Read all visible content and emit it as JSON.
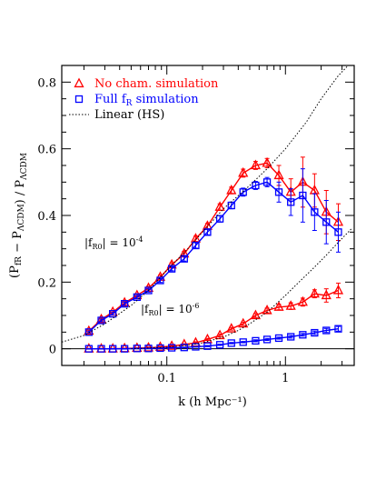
{
  "chart_data": {
    "type": "line",
    "xlabel": "k (h Mpc⁻¹)",
    "ylabel": "(P_fR − P_ΛCDM) / P_ΛCDM",
    "xscale": "log",
    "xlim": [
      0.013,
      3.8
    ],
    "ylim": [
      -0.05,
      0.85
    ],
    "x_ticks": [
      {
        "value": 0.1,
        "label": "0.1"
      },
      {
        "value": 1,
        "label": "1"
      }
    ],
    "y_ticks": [
      {
        "value": 0,
        "label": "0"
      },
      {
        "value": 0.2,
        "label": "0.2"
      },
      {
        "value": 0.4,
        "label": "0.4"
      },
      {
        "value": 0.6,
        "label": "0.6"
      },
      {
        "value": 0.8,
        "label": "0.8"
      }
    ],
    "grid": false,
    "legend": {
      "placement": "top-left",
      "entries": [
        {
          "label": "No cham. simulation",
          "color": "#ff0000",
          "marker": "triangle"
        },
        {
          "label": "Full f",
          "label_sub": "R",
          "label_rest": " simulation",
          "color": "#0000ff",
          "marker": "square"
        },
        {
          "label": "Linear (HS)",
          "color": "#000000",
          "marker": "dotted-line"
        }
      ]
    },
    "annotations": [
      {
        "text": "|f",
        "sub": "R0",
        "rest": "| = 10",
        "sup": "-4"
      },
      {
        "text": "|f",
        "sub": "R0",
        "rest": "| = 10",
        "sup": "-6"
      }
    ],
    "series": [
      {
        "name": "No cham. simulation",
        "group": "fR0=1e-4",
        "color": "#ff0000",
        "marker": "triangle",
        "x": [
          0.022,
          0.028,
          0.035,
          0.044,
          0.056,
          0.07,
          0.088,
          0.11,
          0.14,
          0.175,
          0.22,
          0.28,
          0.35,
          0.44,
          0.56,
          0.7,
          0.88,
          1.11,
          1.4,
          1.76,
          2.21,
          2.79
        ],
        "y": [
          0.053,
          0.088,
          0.11,
          0.138,
          0.16,
          0.182,
          0.215,
          0.252,
          0.285,
          0.33,
          0.368,
          0.425,
          0.475,
          0.527,
          0.55,
          0.557,
          0.52,
          0.47,
          0.5,
          0.475,
          0.41,
          0.38
        ],
        "err": [
          0.003,
          0.004,
          0.004,
          0.005,
          0.005,
          0.005,
          0.006,
          0.006,
          0.007,
          0.008,
          0.008,
          0.01,
          0.01,
          0.012,
          0.012,
          0.014,
          0.03,
          0.04,
          0.075,
          0.05,
          0.065,
          0.055
        ]
      },
      {
        "name": "Full fR simulation",
        "group": "fR0=1e-4",
        "color": "#0000ff",
        "marker": "square",
        "x": [
          0.022,
          0.028,
          0.035,
          0.044,
          0.056,
          0.07,
          0.088,
          0.11,
          0.14,
          0.175,
          0.22,
          0.28,
          0.35,
          0.44,
          0.56,
          0.7,
          0.88,
          1.11,
          1.4,
          1.76,
          2.21,
          2.79
        ],
        "y": [
          0.05,
          0.085,
          0.105,
          0.135,
          0.155,
          0.175,
          0.205,
          0.24,
          0.27,
          0.31,
          0.35,
          0.39,
          0.43,
          0.47,
          0.49,
          0.5,
          0.47,
          0.44,
          0.46,
          0.41,
          0.38,
          0.35
        ],
        "err": [
          0.003,
          0.004,
          0.004,
          0.005,
          0.005,
          0.005,
          0.006,
          0.006,
          0.007,
          0.008,
          0.008,
          0.01,
          0.01,
          0.012,
          0.012,
          0.014,
          0.03,
          0.04,
          0.08,
          0.055,
          0.065,
          0.06
        ]
      },
      {
        "name": "No cham. simulation",
        "group": "fR0=1e-6",
        "color": "#ff0000",
        "marker": "triangle",
        "x": [
          0.022,
          0.028,
          0.035,
          0.044,
          0.056,
          0.07,
          0.088,
          0.11,
          0.14,
          0.175,
          0.22,
          0.28,
          0.35,
          0.44,
          0.56,
          0.7,
          0.88,
          1.11,
          1.4,
          1.76,
          2.21,
          2.79
        ],
        "y": [
          0.0,
          0.0,
          0.0,
          0.001,
          0.002,
          0.003,
          0.005,
          0.008,
          0.013,
          0.018,
          0.028,
          0.04,
          0.06,
          0.075,
          0.1,
          0.115,
          0.125,
          0.128,
          0.14,
          0.165,
          0.16,
          0.175
        ],
        "err": [
          0.001,
          0.001,
          0.001,
          0.001,
          0.001,
          0.002,
          0.002,
          0.002,
          0.002,
          0.003,
          0.003,
          0.004,
          0.004,
          0.005,
          0.006,
          0.007,
          0.008,
          0.01,
          0.012,
          0.012,
          0.02,
          0.022
        ]
      },
      {
        "name": "Full fR simulation",
        "group": "fR0=1e-6",
        "color": "#0000ff",
        "marker": "square",
        "x": [
          0.022,
          0.028,
          0.035,
          0.044,
          0.056,
          0.07,
          0.088,
          0.11,
          0.14,
          0.175,
          0.22,
          0.28,
          0.35,
          0.44,
          0.56,
          0.7,
          0.88,
          1.11,
          1.4,
          1.76,
          2.21,
          2.79
        ],
        "y": [
          0.0,
          0.0,
          0.0,
          0.0,
          0.001,
          0.001,
          0.002,
          0.003,
          0.004,
          0.006,
          0.008,
          0.012,
          0.017,
          0.02,
          0.024,
          0.028,
          0.032,
          0.036,
          0.042,
          0.048,
          0.055,
          0.06
        ],
        "err": [
          0.001,
          0.001,
          0.001,
          0.001,
          0.001,
          0.001,
          0.001,
          0.001,
          0.001,
          0.001,
          0.002,
          0.002,
          0.002,
          0.002,
          0.003,
          0.003,
          0.003,
          0.004,
          0.004,
          0.005,
          0.006,
          0.007
        ]
      },
      {
        "name": "Linear (HS)",
        "group": "fR0=1e-4",
        "color": "#000000",
        "style": "dotted",
        "x": [
          0.013,
          0.02,
          0.03,
          0.05,
          0.07,
          0.1,
          0.15,
          0.2,
          0.3,
          0.5,
          0.7,
          1.0,
          1.5,
          2.0,
          2.8,
          3.6
        ],
        "y": [
          0.02,
          0.04,
          0.075,
          0.13,
          0.175,
          0.235,
          0.3,
          0.35,
          0.42,
          0.49,
          0.54,
          0.6,
          0.68,
          0.75,
          0.82,
          0.86
        ]
      },
      {
        "name": "Linear (HS)",
        "group": "fR0=1e-6",
        "color": "#000000",
        "style": "dotted",
        "x": [
          0.05,
          0.1,
          0.15,
          0.2,
          0.3,
          0.4,
          0.5,
          0.7,
          1.0,
          1.3,
          1.7,
          2.2,
          2.8,
          3.6
        ],
        "y": [
          0.0,
          0.005,
          0.01,
          0.018,
          0.035,
          0.055,
          0.075,
          0.11,
          0.16,
          0.2,
          0.24,
          0.28,
          0.32,
          0.36
        ]
      }
    ]
  }
}
